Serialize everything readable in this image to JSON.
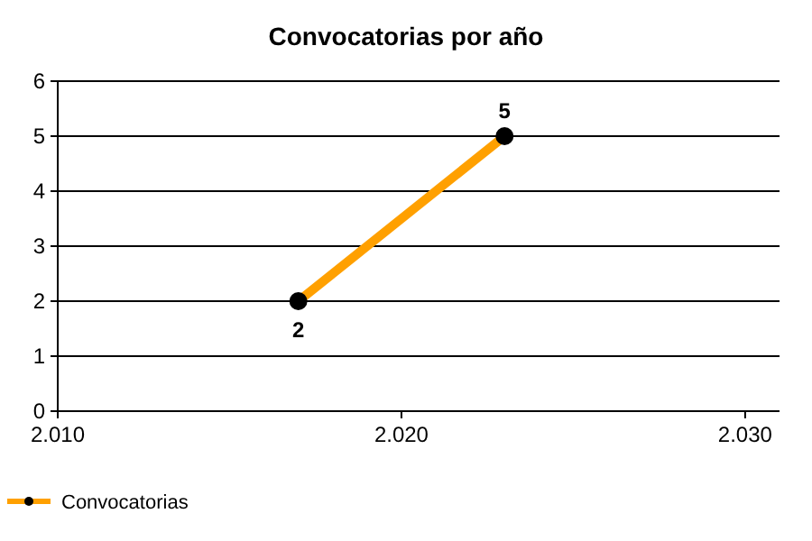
{
  "chart_data": {
    "type": "line",
    "title": "Convocatorias por año",
    "x": [
      2017,
      2023
    ],
    "series": [
      {
        "name": "Convocatorias",
        "color": "#ffa000",
        "values": [
          2,
          5
        ]
      }
    ],
    "xlim": [
      2010,
      2031
    ],
    "xticks": [
      {
        "value": 2010,
        "label": "2.010"
      },
      {
        "value": 2020,
        "label": "2.020"
      },
      {
        "value": 2030,
        "label": "2.030"
      }
    ],
    "ylim": [
      0,
      6
    ],
    "yticks": [
      0,
      1,
      2,
      3,
      4,
      5,
      6
    ],
    "grid": "y",
    "legend": "bottom left",
    "marker": "circle",
    "data_labels": true
  }
}
